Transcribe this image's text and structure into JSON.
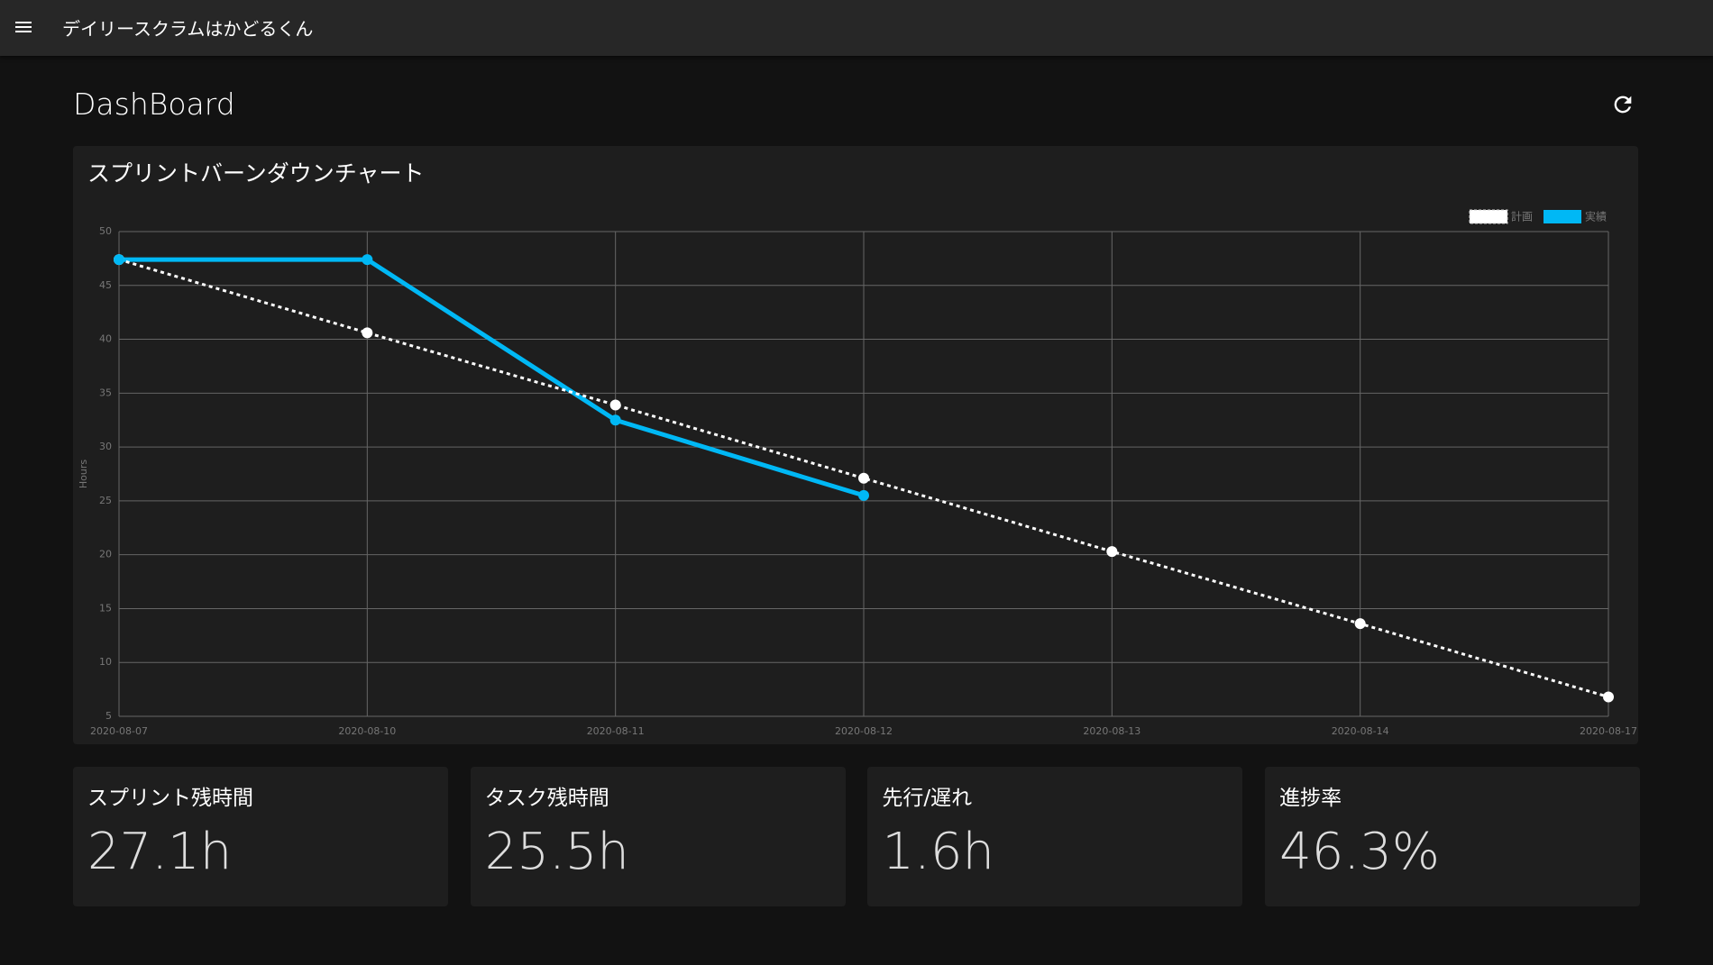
{
  "app_bar": {
    "title": "デイリースクラムはかどるくん"
  },
  "page": {
    "title": "DashBoard"
  },
  "chart_data": {
    "type": "line",
    "title": "スプリントバーンダウンチャート",
    "categories": [
      "2020-08-07",
      "2020-08-10",
      "2020-08-11",
      "2020-08-12",
      "2020-08-13",
      "2020-08-14",
      "2020-08-17"
    ],
    "series": [
      {
        "name": "計画",
        "color": "#ffffff",
        "dashed": true,
        "values": [
          47.4,
          40.6,
          33.9,
          27.1,
          20.3,
          13.6,
          6.8
        ]
      },
      {
        "name": "実績",
        "color": "#00b8f5",
        "dashed": false,
        "values": [
          47.4,
          47.4,
          32.5,
          25.5,
          null,
          null,
          null
        ]
      }
    ],
    "ylabel": "Hours",
    "ylim": [
      5,
      50
    ],
    "yticks": [
      5,
      10,
      15,
      20,
      25,
      30,
      35,
      40,
      45,
      50
    ],
    "grid": true,
    "legend": "top-right"
  },
  "stats": [
    {
      "label": "スプリント残時間",
      "value": "27.1h"
    },
    {
      "label": "タスク残時間",
      "value": "25.5h"
    },
    {
      "label": "先行/遅れ",
      "value": "1.6h"
    },
    {
      "label": "進捗率",
      "value": "46.3%"
    }
  ]
}
